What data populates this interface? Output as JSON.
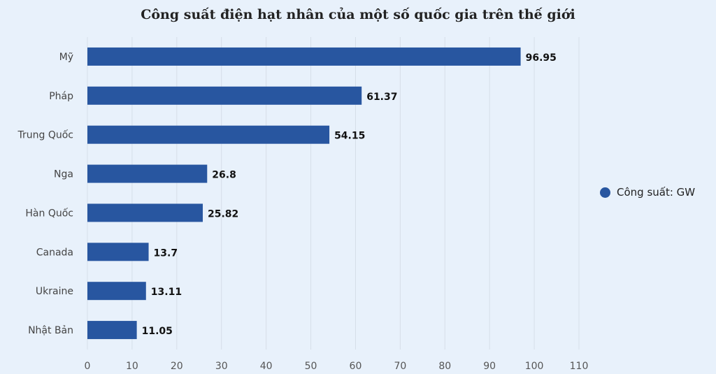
{
  "chart_data": {
    "type": "bar",
    "orientation": "horizontal",
    "title": "Công suất điện hạt nhân của một số quốc gia trên thế giới",
    "categories": [
      "Mỹ",
      "Pháp",
      "Trung Quốc",
      "Nga",
      "Hàn Quốc",
      "Canada",
      "Ukraine",
      "Nhật Bản"
    ],
    "series": [
      {
        "name": "Công suất: GW",
        "values": [
          96.95,
          61.37,
          54.15,
          26.8,
          25.82,
          13.7,
          13.11,
          11.05
        ],
        "color": "#2856a0"
      }
    ],
    "xlim": [
      0,
      110
    ],
    "x_ticks": [
      "0",
      "10",
      "20",
      "30",
      "40",
      "50",
      "60",
      "70",
      "80",
      "90",
      "100",
      "110"
    ],
    "grid": true,
    "data_labels": [
      "96.95",
      "61.37",
      "54.15",
      "26.8",
      "25.82",
      "13.7",
      "13.11",
      "11.05"
    ],
    "legend_position": "right"
  },
  "colors": {
    "background": "#e8f1fb",
    "bar": "#2856a0",
    "grid": "#d6dee8"
  }
}
